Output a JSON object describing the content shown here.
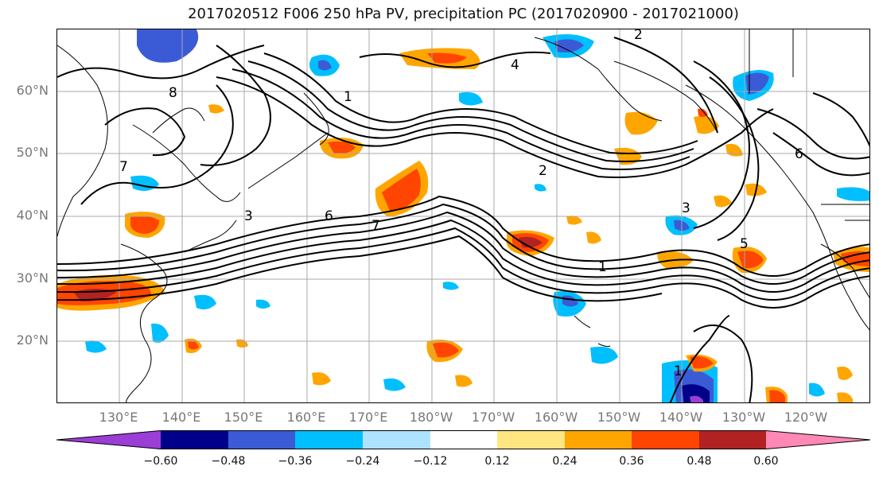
{
  "title": "2017020512 F006 250 hPa PV, precipitation PC (2017020900 - 2017021000)",
  "map": {
    "lat_labels": [
      "60°N",
      "50°N",
      "40°N",
      "30°N",
      "20°N"
    ],
    "lon_labels": [
      "130°E",
      "140°E",
      "150°E",
      "160°E",
      "170°E",
      "180°W",
      "170°W",
      "160°W",
      "150°W",
      "140°W",
      "130°W",
      "120°W"
    ],
    "pv_contour_labels": [
      "1",
      "2",
      "3",
      "4",
      "5",
      "6",
      "7",
      "8"
    ]
  },
  "colorbar": {
    "tick_labels": [
      "−0.60",
      "−0.48",
      "−0.36",
      "−0.24",
      "−0.12",
      "0.12",
      "0.24",
      "0.36",
      "0.48",
      "0.60"
    ],
    "colors": [
      "#9a3ed6",
      "#00008b",
      "#3b5bd6",
      "#00bfff",
      "#aee3ff",
      "#ffffff",
      "#ffe680",
      "#ffa500",
      "#ff4500",
      "#b22222",
      "#ff88b4"
    ]
  }
}
